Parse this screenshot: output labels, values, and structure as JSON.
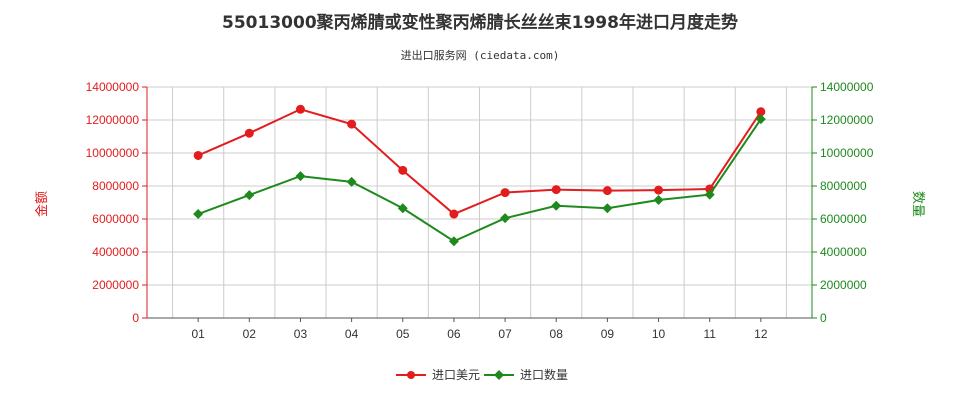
{
  "colors": {
    "left_axis": "#e21d1d",
    "right_axis": "#1e8a1e",
    "series_value": "#e21d1d",
    "series_quantity": "#1e8a1e",
    "grid": "#cccccc"
  },
  "chart_data": {
    "type": "line",
    "title": "55013000聚丙烯腈或变性聚丙烯腈长丝丝束1998年进口月度走势",
    "subtitle": "进出口服务网 (ciedata.com)",
    "xlabel": "",
    "ylabel_left": "金额",
    "ylabel_right": "数量",
    "categories": [
      "01",
      "02",
      "03",
      "04",
      "05",
      "06",
      "07",
      "08",
      "09",
      "10",
      "11",
      "12"
    ],
    "ylim_left": [
      0,
      14000000
    ],
    "ylim_right": [
      0,
      14000000
    ],
    "yticks_left": [
      "0",
      "2000000",
      "4000000",
      "6000000",
      "8000000",
      "10000000",
      "12000000",
      "14000000"
    ],
    "yticks_right": [
      "0",
      "2000000",
      "4000000",
      "6000000",
      "8000000",
      "10000000",
      "12000000",
      "14000000"
    ],
    "grid": true,
    "legend_position": "bottom-center",
    "series": [
      {
        "name": "进口美元",
        "axis": "left",
        "values": [
          9850000,
          11200000,
          12650000,
          11750000,
          8950000,
          6300000,
          7600000,
          7780000,
          7720000,
          7750000,
          7820000,
          12500000
        ]
      },
      {
        "name": "进口数量",
        "axis": "right",
        "values": [
          6300000,
          7450000,
          8600000,
          8250000,
          6650000,
          4650000,
          6050000,
          6800000,
          6650000,
          7150000,
          7480000,
          12050000
        ]
      }
    ]
  }
}
